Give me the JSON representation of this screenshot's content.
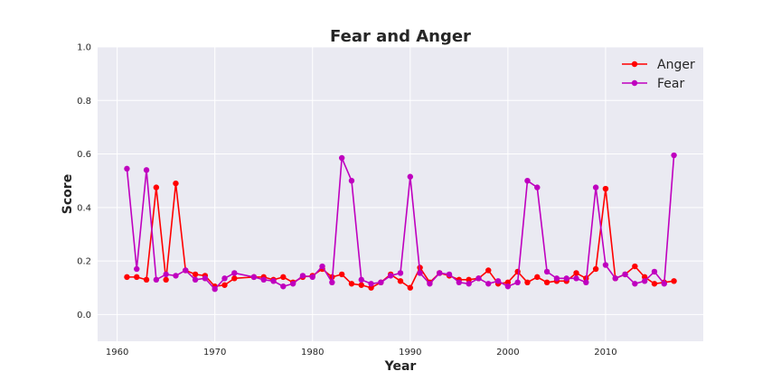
{
  "chart_data": {
    "type": "line",
    "title": "Fear and Anger",
    "xlabel": "Year",
    "ylabel": "Score",
    "xlim": [
      1958,
      2020
    ],
    "ylim": [
      -0.1,
      1.0
    ],
    "xticks": [
      1960,
      1970,
      1980,
      1990,
      2000,
      2010
    ],
    "yticks": [
      0.0,
      0.2,
      0.4,
      0.6,
      0.8,
      1.0
    ],
    "ytick_labels": [
      "0.0",
      "0.2",
      "0.4",
      "0.6",
      "0.8",
      "1.0"
    ],
    "grid": true,
    "background": "#eaeaf2",
    "legend_position": "top-right",
    "x": [
      1961,
      1962,
      1963,
      1964,
      1965,
      1966,
      1967,
      1968,
      1969,
      1970,
      1971,
      1972,
      1974,
      1975,
      1976,
      1977,
      1978,
      1979,
      1980,
      1981,
      1982,
      1983,
      1984,
      1985,
      1986,
      1987,
      1988,
      1989,
      1990,
      1991,
      1992,
      1993,
      1994,
      1995,
      1996,
      1997,
      1998,
      1999,
      2000,
      2001,
      2002,
      2003,
      2004,
      2005,
      2006,
      2007,
      2008,
      2009,
      2010,
      2011,
      2012,
      2013,
      2014,
      2015,
      2016,
      2017
    ],
    "series": [
      {
        "name": "Anger",
        "color": "#ff0000",
        "values": [
          0.14,
          0.14,
          0.13,
          0.475,
          0.13,
          0.49,
          0.165,
          0.15,
          0.145,
          0.105,
          0.11,
          0.135,
          0.14,
          0.14,
          0.13,
          0.14,
          0.12,
          0.14,
          0.145,
          0.17,
          0.14,
          0.15,
          0.115,
          0.11,
          0.1,
          0.12,
          0.15,
          0.125,
          0.1,
          0.175,
          0.12,
          0.155,
          0.145,
          0.13,
          0.13,
          0.135,
          0.165,
          0.115,
          0.12,
          0.16,
          0.12,
          0.14,
          0.12,
          0.125,
          0.125,
          0.155,
          0.135,
          0.17,
          0.47,
          0.135,
          0.15,
          0.18,
          0.14,
          0.115,
          0.12,
          0.125
        ]
      },
      {
        "name": "Fear",
        "color": "#bf00bf",
        "values": [
          0.545,
          0.17,
          0.54,
          0.13,
          0.15,
          0.145,
          0.165,
          0.13,
          0.135,
          0.095,
          0.135,
          0.155,
          0.14,
          0.13,
          0.125,
          0.105,
          0.115,
          0.145,
          0.14,
          0.18,
          0.12,
          0.585,
          0.5,
          0.13,
          0.115,
          0.12,
          0.145,
          0.155,
          0.515,
          0.155,
          0.115,
          0.155,
          0.15,
          0.12,
          0.115,
          0.135,
          0.115,
          0.125,
          0.105,
          0.12,
          0.5,
          0.475,
          0.16,
          0.135,
          0.135,
          0.135,
          0.12,
          0.475,
          0.185,
          0.135,
          0.15,
          0.115,
          0.125,
          0.16,
          0.115,
          0.595
        ]
      }
    ]
  }
}
